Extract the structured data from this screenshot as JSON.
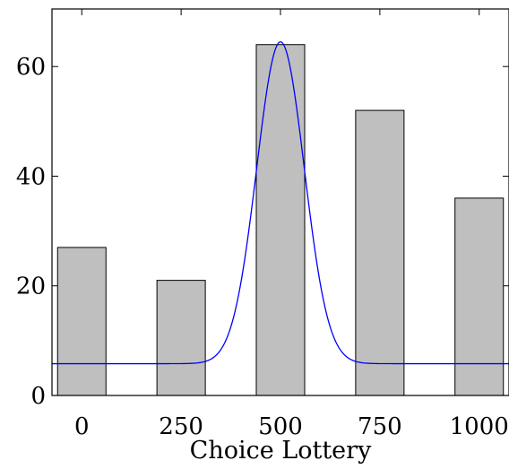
{
  "chart_data": {
    "type": "bar",
    "xlabel": "Choice Lottery",
    "ylabel": "",
    "categories": [
      0,
      250,
      500,
      750,
      1000
    ],
    "x_tick_labels": [
      "0",
      "250",
      "500",
      "750",
      "1000"
    ],
    "values": [
      27,
      21,
      64,
      52,
      36
    ],
    "y_ticks": [
      0,
      20,
      40,
      60
    ],
    "y_tick_labels": [
      "0",
      "20",
      "40",
      "60"
    ],
    "xlim": [
      -75,
      1075
    ],
    "ylim": [
      0,
      70.5
    ],
    "grid": false,
    "bar_color": "#bfbfbf",
    "overlay_curve": {
      "type": "gaussian",
      "color": "#0000ff",
      "baseline": 5.8,
      "peak": 64.5,
      "center": 500,
      "sigma": 60
    }
  }
}
